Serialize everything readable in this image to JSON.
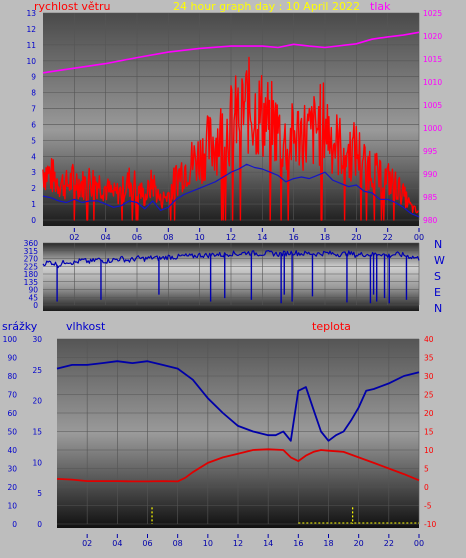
{
  "header": {
    "wind_label": "rychlost větru",
    "title": "24 hour graph day : 10 April 2022",
    "pressure_label": "tlak"
  },
  "rain_label": "srážky",
  "humidity_label": "vlhkost",
  "temp_label": "teplota",
  "colors": {
    "wind": "#ff0000",
    "wind_avg": "#1515c8",
    "pressure": "#ff00ff",
    "direction": "#0000b0",
    "humidity": "#0000a8",
    "temperature": "#e00000",
    "rain": "#ffff00",
    "title": "#ffff00",
    "axis_left": "#0000cc",
    "axis_right_top": "#ff00ff",
    "axis_right_bottom": "#ff0000",
    "compass": "#0000cc"
  },
  "chart_data": [
    {
      "type": "line",
      "title": "24 hour graph day : 10 April 2022",
      "x_ticks": [
        "02",
        "04",
        "06",
        "08",
        "10",
        "12",
        "14",
        "16",
        "18",
        "20",
        "22",
        "00"
      ],
      "xlim": [
        0,
        24
      ],
      "y_left_label": "rychlost větru",
      "y_left_ticks": [
        "0",
        "1",
        "2",
        "3",
        "4",
        "5",
        "6",
        "7",
        "8",
        "9",
        "10",
        "11",
        "12",
        "13"
      ],
      "ylim_left": [
        0,
        13
      ],
      "y_right_label": "tlak",
      "y_right_ticks": [
        "980",
        "985",
        "990",
        "995",
        "1000",
        "1005",
        "1010",
        "1015",
        "1020",
        "1025"
      ],
      "ylim_right": [
        980,
        1025
      ],
      "series": [
        {
          "name": "rychlost větru",
          "axis": "left",
          "x": [
            0,
            0.5,
            1,
            1.5,
            2,
            2.5,
            3,
            3.5,
            4,
            4.5,
            5,
            5.5,
            6,
            6.5,
            7,
            7.5,
            8,
            8.5,
            9,
            9.5,
            10,
            10.5,
            11,
            11.5,
            12,
            12.5,
            13,
            13.5,
            14,
            14.5,
            15,
            15.5,
            16,
            16.5,
            17,
            17.5,
            18,
            18.5,
            19,
            19.5,
            20,
            20.5,
            21,
            21.5,
            22,
            22.5,
            23,
            23.5,
            24
          ],
          "y": [
            3.2,
            2.8,
            2.4,
            2.2,
            2.6,
            2.2,
            2.5,
            2.4,
            2.0,
            1.6,
            1.8,
            2.4,
            2.2,
            1.4,
            2.4,
            1.2,
            1.6,
            2.6,
            3.3,
            3.6,
            4.0,
            4.6,
            5.0,
            5.5,
            6.0,
            6.6,
            7.2,
            6.8,
            6.6,
            6.2,
            5.6,
            4.8,
            5.2,
            5.5,
            5.3,
            5.8,
            6.2,
            5.0,
            4.6,
            4.2,
            4.4,
            3.6,
            3.4,
            2.6,
            2.6,
            2.2,
            1.6,
            0.8,
            0.4
          ]
        },
        {
          "name": "",
          "axis": "left",
          "x": [
            0,
            0.5,
            1,
            1.5,
            2,
            2.5,
            3,
            3.5,
            4,
            4.5,
            5,
            5.5,
            6,
            6.5,
            7,
            7.5,
            8,
            8.5,
            9,
            9.5,
            10,
            10.5,
            11,
            11.5,
            12,
            12.5,
            13,
            13.5,
            14,
            14.5,
            15,
            15.5,
            16,
            16.5,
            17,
            17.5,
            18,
            18.5,
            19,
            19.5,
            20,
            20.5,
            21,
            21.5,
            22,
            22.5,
            23,
            23.5,
            24
          ],
          "y": [
            1.5,
            1.4,
            1.2,
            1.1,
            1.3,
            1.1,
            1.2,
            1.2,
            1.0,
            0.8,
            0.9,
            1.2,
            1.1,
            0.7,
            1.2,
            0.6,
            0.8,
            1.3,
            1.6,
            1.8,
            2.0,
            2.2,
            2.4,
            2.7,
            3.0,
            3.2,
            3.5,
            3.3,
            3.2,
            3.0,
            2.8,
            2.4,
            2.6,
            2.7,
            2.6,
            2.8,
            3.0,
            2.5,
            2.3,
            2.1,
            2.2,
            1.8,
            1.7,
            1.3,
            1.3,
            1.1,
            0.8,
            0.4,
            0.2
          ]
        },
        {
          "name": "tlak",
          "axis": "right",
          "x": [
            0,
            2,
            4,
            6,
            8,
            10,
            12,
            14,
            15,
            16,
            17,
            18,
            20,
            21,
            22,
            23,
            24
          ],
          "y": [
            1012,
            1013,
            1014,
            1015.3,
            1016.5,
            1017.3,
            1017.8,
            1017.8,
            1017.5,
            1018.2,
            1017.8,
            1017.5,
            1018.3,
            1019.3,
            1019.8,
            1020.2,
            1020.8
          ]
        }
      ]
    },
    {
      "type": "line",
      "x_ticks": [
        "02",
        "04",
        "06",
        "08",
        "10",
        "12",
        "14",
        "16",
        "18",
        "20",
        "22",
        "00"
      ],
      "xlim": [
        0,
        24
      ],
      "y_left_ticks": [
        "0",
        "45",
        "90",
        "135",
        "180",
        "225",
        "270",
        "315",
        "360"
      ],
      "ylim": [
        0,
        360
      ],
      "compass_labels": [
        "N",
        "W",
        "S",
        "E",
        "N"
      ],
      "series": [
        {
          "name": "",
          "x": [
            0,
            0.5,
            1,
            1.5,
            2,
            2.5,
            3,
            3.5,
            4,
            4.5,
            5,
            5.5,
            6,
            6.5,
            7,
            7.5,
            8,
            8.5,
            9,
            9.5,
            10,
            10.5,
            11,
            11.5,
            12,
            12.5,
            13,
            13.5,
            14,
            14.5,
            15,
            15.5,
            16,
            16.5,
            17,
            17.5,
            18,
            18.5,
            19,
            19.5,
            20,
            20.5,
            21,
            21.5,
            22,
            22.5,
            23,
            23.5,
            24
          ],
          "y": [
            240,
            250,
            230,
            255,
            245,
            260,
            250,
            265,
            255,
            262,
            270,
            258,
            272,
            268,
            275,
            270,
            280,
            278,
            285,
            282,
            290,
            288,
            295,
            290,
            300,
            296,
            305,
            300,
            298,
            302,
            295,
            300,
            305,
            298,
            300,
            296,
            302,
            298,
            295,
            300,
            290,
            295,
            292,
            300,
            285,
            295,
            290,
            280,
            270
          ],
          "drops": [
            [
              0.9,
              20
            ],
            [
              3.7,
              30
            ],
            [
              7.4,
              60
            ],
            [
              10.7,
              20
            ],
            [
              11.6,
              40
            ],
            [
              13.3,
              30
            ],
            [
              15.2,
              10
            ],
            [
              15.4,
              60
            ],
            [
              15.9,
              20
            ],
            [
              17.2,
              50
            ],
            [
              19.4,
              15
            ],
            [
              20.9,
              10
            ],
            [
              21.1,
              60
            ],
            [
              21.3,
              20
            ],
            [
              21.8,
              40
            ],
            [
              22.1,
              10
            ],
            [
              23.2,
              30
            ]
          ]
        }
      ]
    },
    {
      "type": "line",
      "x_ticks": [
        "02",
        "04",
        "06",
        "08",
        "10",
        "12",
        "14",
        "16",
        "18",
        "20",
        "22",
        "00"
      ],
      "xlim": [
        0,
        24
      ],
      "y_rain_label": "srážky",
      "y_rain_ticks": [
        "0",
        "10",
        "20",
        "30",
        "40",
        "50",
        "60",
        "70",
        "80",
        "90",
        "100"
      ],
      "ylim_rain": [
        0,
        100
      ],
      "y_humidity_label": "vlhkost",
      "y_humidity_ticks": [
        "0",
        "5",
        "10",
        "15",
        "20",
        "25",
        "30"
      ],
      "ylim_humidity": [
        0,
        30
      ],
      "y_temp_label": "teplota",
      "y_temp_ticks": [
        "-10",
        "-5",
        "0",
        "5",
        "10",
        "15",
        "20",
        "25",
        "30",
        "35",
        "40"
      ],
      "ylim_temp": [
        -10,
        40
      ],
      "series": [
        {
          "name": "vlhkost",
          "axis": "rain",
          "x": [
            0,
            1,
            2,
            3,
            4,
            5,
            6,
            7,
            8,
            9,
            10,
            11,
            12,
            13,
            14,
            14.5,
            15,
            15.5,
            16,
            16.5,
            17,
            17.5,
            18,
            18.5,
            19,
            19.5,
            20,
            20.5,
            21,
            22,
            23,
            24
          ],
          "y": [
            84,
            86,
            86,
            87,
            88,
            87,
            88,
            86,
            84,
            78,
            68,
            60,
            53,
            50,
            48,
            48,
            50,
            45,
            72,
            74,
            62,
            50,
            45,
            48,
            50,
            56,
            63,
            72,
            73,
            76,
            80,
            82
          ]
        },
        {
          "name": "teplota",
          "axis": "temp",
          "x": [
            0,
            1,
            2,
            3,
            4,
            5,
            6,
            7,
            8,
            8.5,
            9,
            10,
            11,
            12,
            13,
            14,
            15,
            15.5,
            16,
            16.5,
            17,
            17.5,
            18,
            19,
            20,
            21,
            22,
            23,
            24
          ],
          "y": [
            2.2,
            2,
            1.6,
            1.6,
            1.6,
            1.5,
            1.5,
            1.6,
            1.5,
            2.5,
            4,
            6.5,
            8,
            9,
            10,
            10.2,
            10,
            8,
            7,
            8.5,
            9.5,
            10,
            9.8,
            9.5,
            8,
            6.5,
            5,
            3.5,
            1.8
          ]
        },
        {
          "name": "",
          "axis": "rain",
          "type": "bar",
          "x": [
            6.3,
            19.6
          ],
          "y": [
            9,
            9
          ]
        }
      ]
    }
  ]
}
